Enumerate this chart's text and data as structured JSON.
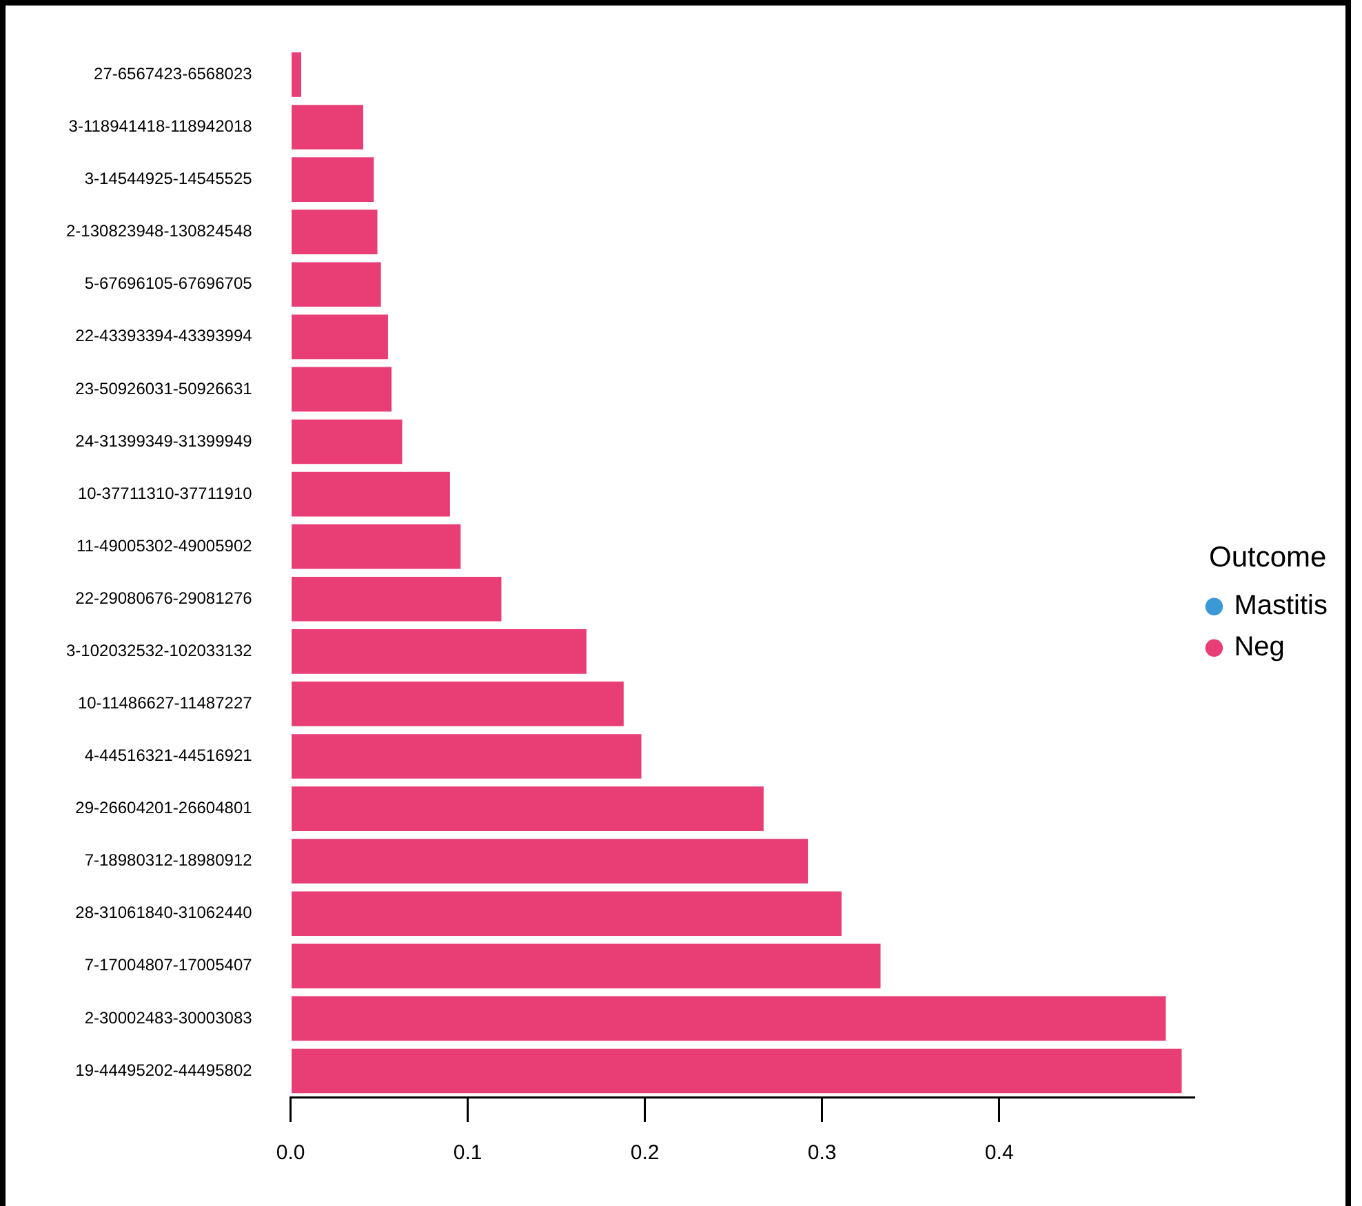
{
  "chart_data": {
    "type": "bar",
    "orientation": "horizontal",
    "legend_title": "Outcome",
    "legend": "right",
    "categories": [
      "27-6567423-6568023",
      "3-118941418-118942018",
      "3-14544925-14545525",
      "2-130823948-130824548",
      "5-67696105-67696705",
      "22-43393394-43393994",
      "23-50926031-50926631",
      "24-31399349-31399949",
      "10-37711310-37711910",
      "11-49005302-49005902",
      "22-29080676-29081276",
      "3-102032532-102033132",
      "10-11486627-11487227",
      "4-44516321-44516921",
      "29-26604201-26604801",
      "7-18980312-18980912",
      "28-31061840-31062440",
      "7-17004807-17005407",
      "2-30002483-30003083",
      "19-44495202-44495802"
    ],
    "series": [
      {
        "name": "Mastitis",
        "color": "#3b9ad6",
        "values": [
          null,
          null,
          null,
          null,
          null,
          null,
          null,
          null,
          null,
          null,
          null,
          null,
          null,
          null,
          null,
          null,
          null,
          null,
          null,
          null
        ]
      },
      {
        "name": "Neg",
        "color": "#e83e75",
        "values": [
          0.006,
          0.041,
          0.047,
          0.049,
          0.051,
          0.055,
          0.057,
          0.063,
          0.09,
          0.096,
          0.119,
          0.167,
          0.188,
          0.198,
          0.267,
          0.292,
          0.311,
          0.333,
          0.494,
          0.503
        ]
      }
    ],
    "xlim": [
      0,
      0.51
    ],
    "xticks": [
      {
        "value": 0,
        "label": "0.0"
      },
      0.1,
      0.2,
      0.3,
      0.4
    ],
    "grid": false
  }
}
